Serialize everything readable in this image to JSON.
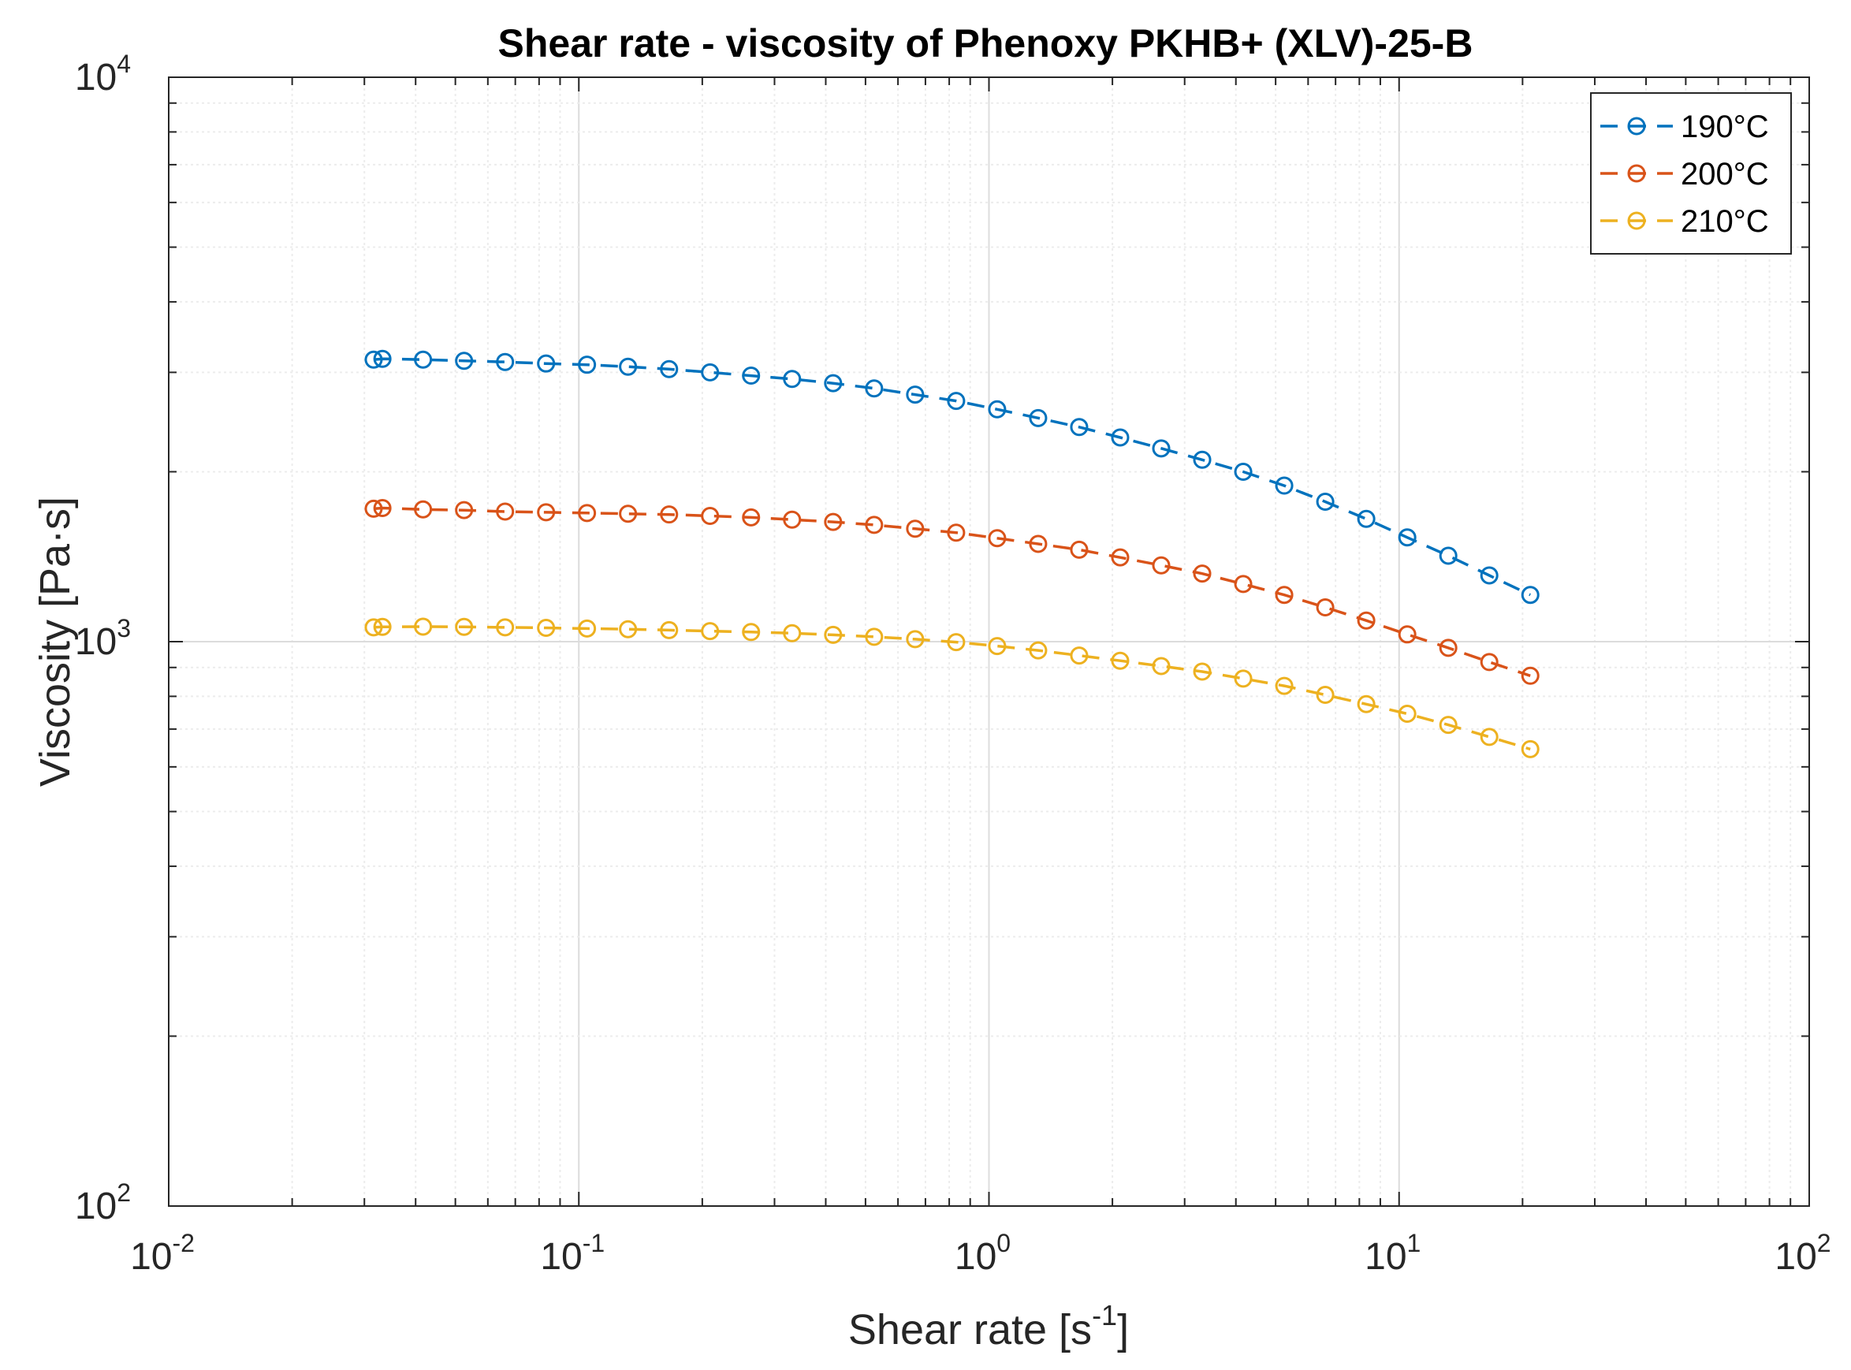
{
  "chart_data": {
    "type": "line",
    "title": "Shear rate - viscosity of Phenoxy PKHB+ (XLV)-25-B",
    "xlabel": {
      "prefix": "Shear rate [s",
      "exponent": "-1",
      "suffix": "]"
    },
    "ylabel": "Viscosity [Pa·s]",
    "xscale": "log",
    "yscale": "log",
    "xlim": [
      0.01,
      100
    ],
    "ylim": [
      100,
      10000
    ],
    "xticks": [
      {
        "base": "10",
        "exp": "-2"
      },
      {
        "base": "10",
        "exp": "-1"
      },
      {
        "base": "10",
        "exp": "0"
      },
      {
        "base": "10",
        "exp": "1"
      },
      {
        "base": "10",
        "exp": "2"
      }
    ],
    "yticks": [
      {
        "base": "10",
        "exp": "2"
      },
      {
        "base": "10",
        "exp": "3"
      },
      {
        "base": "10",
        "exp": "4"
      }
    ],
    "grid": true,
    "legend_position": "top-right",
    "x": [
      0.0316,
      0.0332,
      0.0417,
      0.0525,
      0.0661,
      0.0832,
      0.1047,
      0.1318,
      0.166,
      0.2089,
      0.263,
      0.3311,
      0.4169,
      0.5248,
      0.6607,
      0.8318,
      1.0471,
      1.3183,
      1.6596,
      2.0893,
      2.6303,
      3.3113,
      4.1687,
      5.2481,
      6.6069,
      8.3176,
      10.471,
      13.183,
      16.596,
      20.893
    ],
    "series": [
      {
        "name": "190°C",
        "color": "#0072BD",
        "values": [
          3160,
          3170,
          3160,
          3145,
          3130,
          3110,
          3095,
          3070,
          3040,
          3000,
          2960,
          2920,
          2870,
          2810,
          2740,
          2670,
          2580,
          2490,
          2400,
          2300,
          2200,
          2100,
          2000,
          1890,
          1770,
          1650,
          1530,
          1420,
          1310,
          1210
        ]
      },
      {
        "name": "200°C",
        "color": "#D95319",
        "values": [
          1720,
          1725,
          1715,
          1710,
          1700,
          1695,
          1690,
          1685,
          1680,
          1670,
          1660,
          1645,
          1630,
          1610,
          1585,
          1560,
          1525,
          1490,
          1455,
          1410,
          1365,
          1320,
          1265,
          1210,
          1150,
          1090,
          1030,
          975,
          920,
          870
        ]
      },
      {
        "name": "210°C",
        "color": "#EDB120",
        "values": [
          1060,
          1062,
          1063,
          1062,
          1060,
          1058,
          1055,
          1052,
          1048,
          1044,
          1040,
          1035,
          1028,
          1020,
          1010,
          998,
          982,
          965,
          945,
          925,
          905,
          885,
          860,
          835,
          805,
          775,
          745,
          712,
          678,
          645
        ]
      }
    ]
  }
}
